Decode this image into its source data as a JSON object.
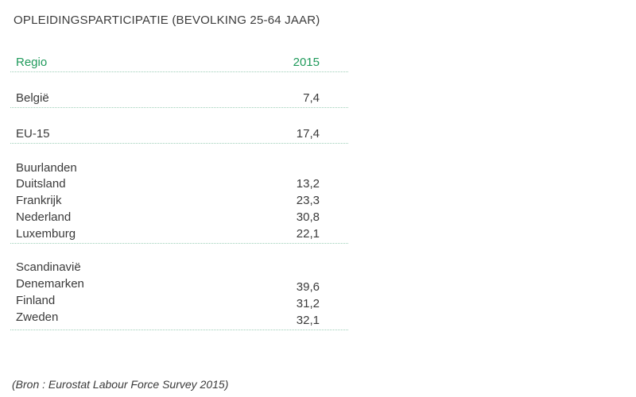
{
  "title": "OPLEIDINGSPARTICIPATIE (BEVOLKING 25-64 JAAR)",
  "header": {
    "regio": "Regio",
    "year": "2015"
  },
  "belgie": {
    "label": "België",
    "value": "7,4"
  },
  "eu15": {
    "label": "EU-15",
    "value": "17,4"
  },
  "buurlanden": {
    "heading": "Buurlanden",
    "rows": [
      {
        "label": "Duitsland",
        "value": "13,2"
      },
      {
        "label": "Frankrijk",
        "value": "23,3"
      },
      {
        "label": "Nederland",
        "value": "30,8"
      },
      {
        "label": "Luxemburg",
        "value": "22,1"
      }
    ]
  },
  "scandinavie": {
    "heading": "Scandinavië",
    "rows": [
      {
        "label": "Denemarken",
        "value": "39,6"
      },
      {
        "label": "Finland",
        "value": "31,2"
      },
      {
        "label": "Zweden",
        "value": "32,1"
      }
    ]
  },
  "source": "(Bron : Eurostat Labour Force Survey 2015)",
  "colors": {
    "accent": "#1f9a5b",
    "text": "#3a3a3a",
    "rule": "#9ecfb8"
  }
}
